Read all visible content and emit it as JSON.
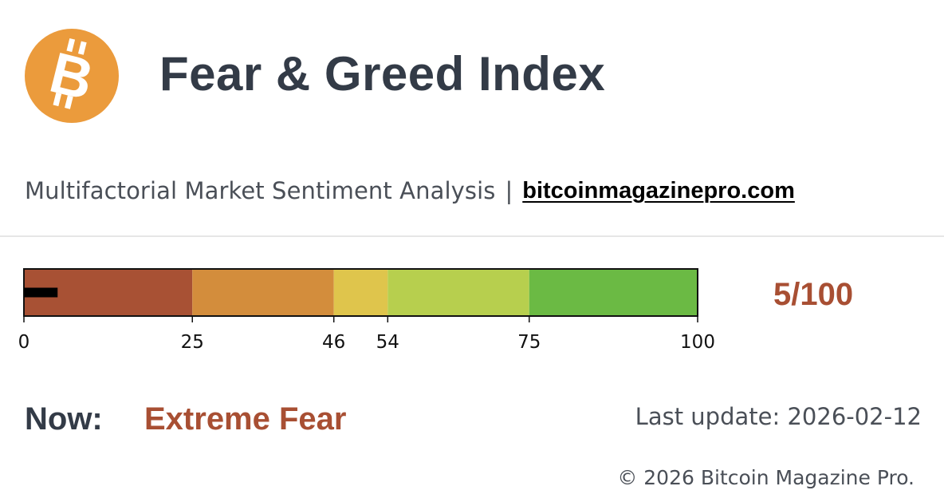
{
  "header": {
    "logo_icon": "bitcoin-logo-icon",
    "logo_color": "#eb9b3c",
    "title": "Fear & Greed Index"
  },
  "subheader": {
    "description": "Multifactorial Market Sentiment Analysis",
    "separator": "|",
    "link_text": "bitcoinmagazinepro.com"
  },
  "gauge": {
    "min": 0,
    "max": 100,
    "value": 5,
    "value_color": "#000000",
    "ticks": [
      "0",
      "25",
      "46",
      "54",
      "75",
      "100"
    ],
    "segments": [
      {
        "from": 0,
        "to": 25,
        "color": "#a85134"
      },
      {
        "from": 25,
        "to": 46,
        "color": "#d38d3c"
      },
      {
        "from": 46,
        "to": 54,
        "color": "#dfc54c"
      },
      {
        "from": 54,
        "to": 75,
        "color": "#b7cf4e"
      },
      {
        "from": 75,
        "to": 100,
        "color": "#6bba44"
      }
    ]
  },
  "score": {
    "text": "5/100",
    "color": "#a84f33"
  },
  "status": {
    "label": "Now:",
    "value": "Extreme Fear",
    "last_update": "Last update: 2026-02-12"
  },
  "footer": {
    "copyright": "© 2026 Bitcoin Magazine Pro."
  }
}
